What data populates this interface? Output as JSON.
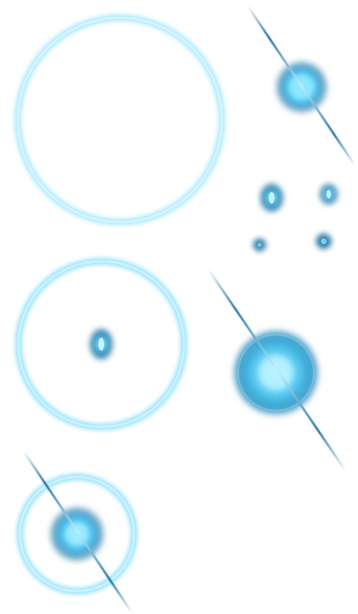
{
  "sprite_sheet": {
    "background": "#ffffff",
    "palette": {
      "glow_light": "#7fe3ff",
      "glow_mid": "#3fb6e6",
      "glow_dark": "#1b6f9c",
      "core_white": "#e8fbff",
      "streak": "#1f6f9f"
    },
    "sprites": [
      {
        "name": "large-ring",
        "kind": "ring"
      },
      {
        "name": "flare-small",
        "kind": "glow-with-streak"
      },
      {
        "name": "dot-1",
        "kind": "small-glow"
      },
      {
        "name": "dot-2",
        "kind": "small-glow"
      },
      {
        "name": "dot-3",
        "kind": "small-glow"
      },
      {
        "name": "dot-4",
        "kind": "small-glow"
      },
      {
        "name": "ring-with-dot",
        "kind": "ring-with-core"
      },
      {
        "name": "flare-large",
        "kind": "glow-with-streak"
      },
      {
        "name": "ring-with-flare",
        "kind": "ring-with-glow-and-streak"
      }
    ]
  }
}
